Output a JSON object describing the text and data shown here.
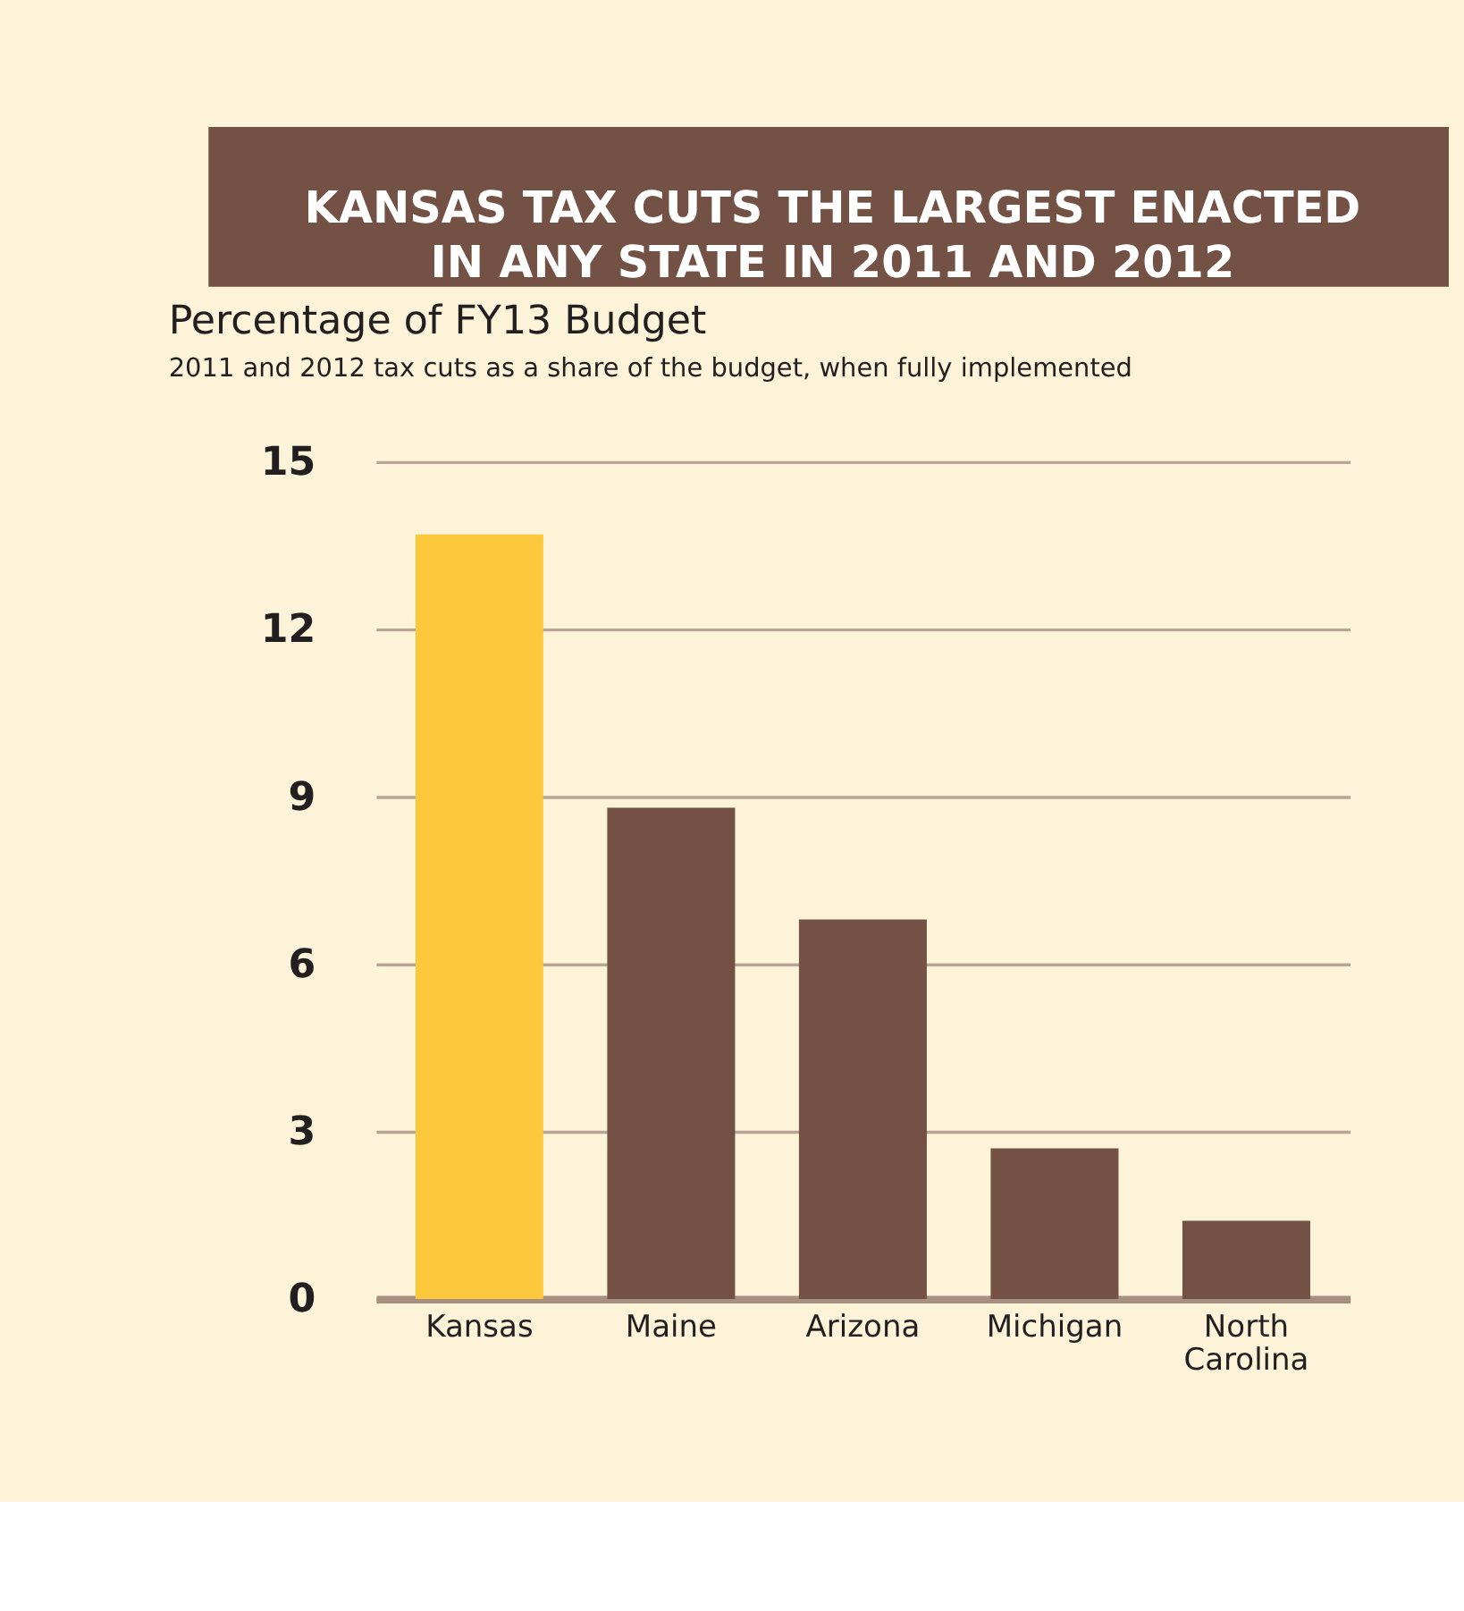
{
  "chart_data": {
    "type": "bar",
    "title": "KANSAS TAX CUTS THE LARGEST ENACTED IN ANY STATE IN 2011 AND 2012",
    "ylabel": "Percentage of FY13 Budget",
    "subtitle": "2011 and 2012 tax cuts as a share of the budget, when fully implemented",
    "categories": [
      "Kansas",
      "Maine",
      "Arizona",
      "Michigan",
      "North Carolina"
    ],
    "values": [
      13.7,
      8.8,
      6.8,
      2.7,
      1.4
    ],
    "colors": [
      "#fcc93c",
      "#735245",
      "#735245",
      "#735245",
      "#735245"
    ],
    "ylim": [
      0,
      15
    ],
    "yticks": [
      0,
      3,
      6,
      9,
      12,
      15
    ],
    "grid": "y"
  }
}
